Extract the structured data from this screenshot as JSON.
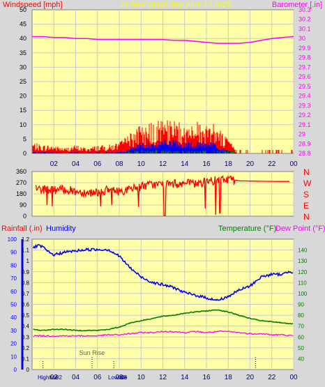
{
  "header": {
    "left": "Windspeed [mph]",
    "center": "24 hour graph day   June 12 2025",
    "right": "Barometer [.in]"
  },
  "colors": {
    "background": "#d8d8d8",
    "plot": "#ffffa8",
    "grid": "#c8c8c8",
    "wind": "#ff0000",
    "gust": "#ff0000",
    "avg_wind": "#0000ff",
    "calm": "#008000",
    "barometer": "#ff00ff",
    "direction": "#ff0000",
    "humidity": "#0000ff",
    "temperature": "#008000",
    "dew_point": "#ff00ff",
    "rainfall": "#ff0000",
    "sun": "#000000"
  },
  "time_axis": {
    "ticks": [
      "02",
      "04",
      "06",
      "08",
      "10",
      "12",
      "14",
      "16",
      "18",
      "20",
      "22",
      "00"
    ],
    "range_hours": [
      0,
      24
    ]
  },
  "chart_data": [
    {
      "type": "bar",
      "id": "wind",
      "title": "",
      "ylabel_left": "Windspeed [mph]",
      "ylabel_right": "Barometer [.in]",
      "ylim": [
        0,
        50
      ],
      "left_ticks": [
        "0",
        "5",
        "10",
        "15",
        "20",
        "25",
        "30",
        "35",
        "40",
        "45",
        "50"
      ],
      "right_ylim": [
        28.8,
        30.3
      ],
      "right_ticks": [
        "28.8",
        "28.9",
        "29",
        "29.1",
        "29.2",
        "29.3",
        "29.4",
        "29.5",
        "29.6",
        "29.7",
        "29.8",
        "29.9",
        "30",
        "30.1",
        "30.2",
        "30.3"
      ],
      "series": [
        {
          "name": "Barometer",
          "axis": "right",
          "type": "line",
          "x": [
            0,
            1,
            2,
            3,
            4,
            5,
            6,
            7,
            8,
            9,
            10,
            11,
            12,
            13,
            14,
            15,
            16,
            17,
            18,
            19,
            20,
            21,
            22,
            23,
            24
          ],
          "values": [
            30.02,
            30.02,
            30.01,
            30.01,
            30.0,
            30.0,
            29.99,
            29.99,
            29.99,
            29.99,
            29.99,
            29.99,
            29.99,
            29.98,
            29.98,
            29.97,
            29.96,
            29.95,
            29.95,
            29.95,
            29.96,
            29.98,
            30.0,
            30.01,
            30.02
          ]
        }
      ],
      "wind_profile": {
        "x": [
          0,
          1,
          2,
          3,
          4,
          5,
          6,
          7,
          8,
          9,
          10,
          11,
          12,
          13,
          14,
          15,
          16,
          17,
          18,
          19,
          20,
          21,
          22,
          23,
          24
        ],
        "gust_max": [
          4,
          3,
          3,
          2,
          3,
          2,
          3,
          3,
          4,
          7,
          10,
          11,
          12,
          12,
          11,
          11,
          13,
          10,
          5,
          1,
          1,
          1,
          1,
          1,
          1
        ],
        "avg": [
          0.5,
          0.5,
          0.5,
          0.3,
          0.5,
          0.3,
          0.5,
          0.5,
          0.5,
          2,
          4,
          4,
          5,
          5,
          4,
          4,
          5,
          3,
          1,
          0,
          0,
          0,
          0,
          0,
          0
        ]
      }
    },
    {
      "type": "line",
      "id": "direction",
      "ylim": [
        0,
        360
      ],
      "left_ticks": [
        "0",
        "90",
        "180",
        "270",
        "360"
      ],
      "right_labels": [
        "N",
        "W",
        "S",
        "E",
        "N"
      ],
      "series": [
        {
          "name": "Wind Direction",
          "x": [
            0,
            1,
            2,
            3,
            4,
            5,
            6,
            7,
            8,
            9,
            10,
            11,
            12,
            13,
            14,
            15,
            16,
            17,
            18,
            19,
            20,
            21,
            22,
            23,
            24
          ],
          "values": [
            230,
            215,
            210,
            215,
            200,
            190,
            195,
            210,
            200,
            215,
            240,
            255,
            255,
            260,
            265,
            260,
            275,
            290,
            300,
            285,
            283,
            282,
            281,
            280,
            280
          ]
        }
      ]
    },
    {
      "type": "line",
      "id": "temperature",
      "left_header": [
        "Rainfall (.in)",
        "Humidity"
      ],
      "right_header": [
        "Temperature (°F)",
        "Dew Point (°F)"
      ],
      "rain_ylim": [
        0,
        1.2
      ],
      "rain_ticks": [
        "0",
        "0.1",
        "0.2",
        "0.3",
        "0.4",
        "0.5",
        "0.6",
        "0.7",
        "0.8",
        "0.9",
        "1",
        "1.1",
        "1.2"
      ],
      "humidity_ylim": [
        0,
        100
      ],
      "humidity_ticks": [
        "0",
        "10",
        "20",
        "30",
        "40",
        "50",
        "60",
        "70",
        "80",
        "90",
        "100"
      ],
      "temp_ylim": [
        30,
        150
      ],
      "temp_ticks": [
        "40",
        "50",
        "60",
        "70",
        "80",
        "90",
        "100",
        "110",
        "120",
        "130",
        "140"
      ],
      "series": [
        {
          "name": "Humidity",
          "axis": "humidity",
          "x": [
            0,
            0.5,
            1,
            1.5,
            2,
            3,
            4,
            5,
            6,
            7,
            8,
            9,
            10,
            11,
            12,
            13,
            14,
            15,
            16,
            17,
            18,
            19,
            20,
            21,
            22,
            23,
            23.5,
            24
          ],
          "values": [
            93,
            95,
            94,
            90,
            88,
            90,
            91,
            92,
            92,
            92,
            87,
            78,
            71,
            67,
            65,
            63,
            59,
            57,
            55,
            53,
            56,
            61,
            64,
            71,
            73,
            73,
            75,
            75
          ]
        },
        {
          "name": "Temperature",
          "axis": "temp",
          "x": [
            0,
            1,
            2,
            3,
            4,
            5,
            6,
            7,
            8,
            9,
            10,
            11,
            12,
            13,
            14,
            15,
            16,
            17,
            18,
            19,
            20,
            21,
            22,
            23,
            24
          ],
          "values": [
            67,
            66,
            67,
            67,
            66,
            66,
            66,
            67,
            69,
            73,
            75,
            77,
            79,
            80,
            82,
            83,
            84,
            85,
            83,
            80,
            77,
            75,
            74,
            73,
            72
          ]
        },
        {
          "name": "Dew Point",
          "axis": "temp",
          "x": [
            0,
            1,
            2,
            3,
            4,
            5,
            6,
            7,
            8,
            9,
            10,
            11,
            12,
            13,
            14,
            15,
            16,
            17,
            18,
            19,
            20,
            21,
            22,
            23,
            24
          ],
          "values": [
            61,
            61,
            61,
            61,
            61,
            61,
            61,
            62,
            62,
            63,
            64,
            64,
            65,
            65,
            64,
            65,
            64,
            65,
            65,
            64,
            63,
            63,
            62,
            62,
            61
          ]
        }
      ],
      "sun": {
        "sunrise_label": "Sun Rise",
        "sunrise_hour": 5.5,
        "sunset_hour": 20.5
      },
      "tides": {
        "high_label": "Hightide",
        "high_time_tail": "02",
        "high_hour": 1.0,
        "low_label": "Lowtide",
        "low_time_tail": "08",
        "low_hour": 7.5
      }
    }
  ]
}
